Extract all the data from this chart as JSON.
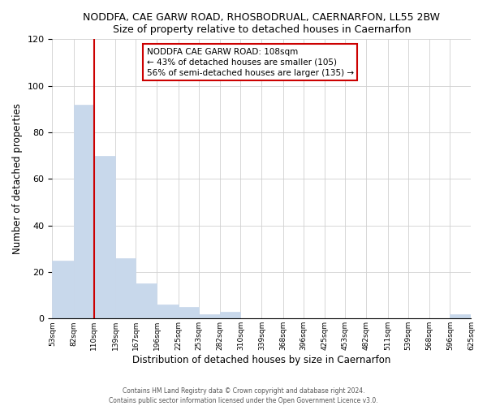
{
  "title": "NODDFA, CAE GARW ROAD, RHOSBODRUAL, CAERNARFON, LL55 2BW",
  "subtitle": "Size of property relative to detached houses in Caernarfon",
  "xlabel": "Distribution of detached houses by size in Caernarfon",
  "ylabel": "Number of detached properties",
  "bar_edges": [
    53,
    82,
    110,
    139,
    167,
    196,
    225,
    253,
    282,
    310,
    339,
    368,
    396,
    425,
    453,
    482,
    511,
    539,
    568,
    596,
    625
  ],
  "bar_heights": [
    25,
    92,
    70,
    26,
    15,
    6,
    5,
    2,
    3,
    0,
    0,
    0,
    0,
    0,
    0,
    0,
    0,
    0,
    0,
    2
  ],
  "bar_color": "#c8d8eb",
  "bar_edge_color": "#c8d8eb",
  "vline_x": 110,
  "vline_color": "#cc0000",
  "annotation_title": "NODDFA CAE GARW ROAD: 108sqm",
  "annotation_line1": "← 43% of detached houses are smaller (105)",
  "annotation_line2": "56% of semi-detached houses are larger (135) →",
  "ylim": [
    0,
    120
  ],
  "yticks": [
    0,
    20,
    40,
    60,
    80,
    100,
    120
  ],
  "footer1": "Contains HM Land Registry data © Crown copyright and database right 2024.",
  "footer2": "Contains public sector information licensed under the Open Government Licence v3.0."
}
